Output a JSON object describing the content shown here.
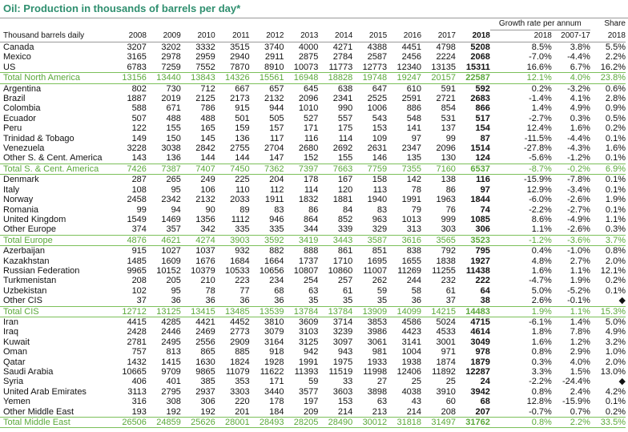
{
  "title": "Oil: Production in thousands of barrels per day*",
  "header": {
    "label": "Thousand barrels daily",
    "years": [
      "2008",
      "2009",
      "2010",
      "2011",
      "2012",
      "2013",
      "2014",
      "2015",
      "2016",
      "2017",
      "2018"
    ],
    "growth": "Growth rate per annum",
    "growth_columns": [
      "2018",
      "2007-17"
    ],
    "share": [
      "Share",
      "2018"
    ]
  },
  "groups": [
    {
      "rows": [
        [
          "Canada",
          "3207",
          "3202",
          "3332",
          "3515",
          "3740",
          "4000",
          "4271",
          "4388",
          "4451",
          "4798",
          "5208",
          "8.5%",
          "3.8%",
          "5.5%"
        ],
        [
          "Mexico",
          "3165",
          "2978",
          "2959",
          "2940",
          "2911",
          "2875",
          "2784",
          "2587",
          "2456",
          "2224",
          "2068",
          "-7.0%",
          "-4.4%",
          "2.2%"
        ],
        [
          "US",
          "6783",
          "7259",
          "7552",
          "7870",
          "8910",
          "10073",
          "11773",
          "12773",
          "12340",
          "13135",
          "15311",
          "16.6%",
          "6.7%",
          "16.2%"
        ]
      ],
      "total": [
        "Total North America",
        "13156",
        "13440",
        "13843",
        "14326",
        "15561",
        "16948",
        "18828",
        "19748",
        "19247",
        "20157",
        "22587",
        "12.1%",
        "4.0%",
        "23.8%"
      ]
    },
    {
      "rows": [
        [
          "Argentina",
          "802",
          "730",
          "712",
          "667",
          "657",
          "645",
          "638",
          "647",
          "610",
          "591",
          "592",
          "0.2%",
          "-3.2%",
          "0.6%"
        ],
        [
          "Brazil",
          "1887",
          "2019",
          "2125",
          "2173",
          "2132",
          "2096",
          "2341",
          "2525",
          "2591",
          "2721",
          "2683",
          "-1.4%",
          "4.1%",
          "2.8%"
        ],
        [
          "Colombia",
          "588",
          "671",
          "786",
          "915",
          "944",
          "1010",
          "990",
          "1006",
          "886",
          "854",
          "866",
          "1.4%",
          "4.9%",
          "0.9%"
        ],
        [
          "Ecuador",
          "507",
          "488",
          "488",
          "501",
          "505",
          "527",
          "557",
          "543",
          "548",
          "531",
          "517",
          "-2.7%",
          "0.3%",
          "0.5%"
        ],
        [
          "Peru",
          "122",
          "155",
          "165",
          "159",
          "157",
          "171",
          "175",
          "153",
          "141",
          "137",
          "154",
          "12.4%",
          "1.6%",
          "0.2%"
        ],
        [
          "Trinidad & Tobago",
          "149",
          "150",
          "145",
          "136",
          "117",
          "116",
          "114",
          "109",
          "97",
          "99",
          "87",
          "-11.5%",
          "-4.4%",
          "0.1%"
        ],
        [
          "Venezuela",
          "3228",
          "3038",
          "2842",
          "2755",
          "2704",
          "2680",
          "2692",
          "2631",
          "2347",
          "2096",
          "1514",
          "-27.8%",
          "-4.3%",
          "1.6%"
        ],
        [
          "Other S. & Cent. America",
          "143",
          "136",
          "144",
          "144",
          "147",
          "152",
          "155",
          "146",
          "135",
          "130",
          "124",
          "-5.6%",
          "-1.2%",
          "0.1%"
        ]
      ],
      "total": [
        "Total S. & Cent. America",
        "7426",
        "7387",
        "7407",
        "7450",
        "7362",
        "7397",
        "7663",
        "7759",
        "7355",
        "7160",
        "6537",
        "-8.7%",
        "-0.2%",
        "6.9%"
      ]
    },
    {
      "rows": [
        [
          "Denmark",
          "287",
          "265",
          "249",
          "225",
          "204",
          "178",
          "167",
          "158",
          "142",
          "138",
          "116",
          "-15.9%",
          "-7.8%",
          "0.1%"
        ],
        [
          "Italy",
          "108",
          "95",
          "106",
          "110",
          "112",
          "114",
          "120",
          "113",
          "78",
          "86",
          "97",
          "12.9%",
          "-3.4%",
          "0.1%"
        ],
        [
          "Norway",
          "2458",
          "2342",
          "2132",
          "2033",
          "1911",
          "1832",
          "1881",
          "1940",
          "1991",
          "1963",
          "1844",
          "-6.0%",
          "-2.6%",
          "1.9%"
        ],
        [
          "Romania",
          "99",
          "94",
          "90",
          "89",
          "83",
          "86",
          "84",
          "83",
          "79",
          "76",
          "74",
          "-2.2%",
          "-2.7%",
          "0.1%"
        ],
        [
          "United Kingdom",
          "1549",
          "1469",
          "1356",
          "1112",
          "946",
          "864",
          "852",
          "963",
          "1013",
          "999",
          "1085",
          "8.6%",
          "-4.9%",
          "1.1%"
        ],
        [
          "Other Europe",
          "374",
          "357",
          "342",
          "335",
          "335",
          "344",
          "339",
          "329",
          "313",
          "303",
          "306",
          "1.1%",
          "-2.6%",
          "0.3%"
        ]
      ],
      "total": [
        "Total Europe",
        "4876",
        "4621",
        "4274",
        "3903",
        "3592",
        "3419",
        "3443",
        "3587",
        "3616",
        "3565",
        "3523",
        "-1.2%",
        "-3.6%",
        "3.7%"
      ]
    },
    {
      "rows": [
        [
          "Azerbaijan",
          "915",
          "1027",
          "1037",
          "932",
          "882",
          "888",
          "861",
          "851",
          "838",
          "792",
          "795",
          "0.4%",
          "-1.0%",
          "0.8%"
        ],
        [
          "Kazakhstan",
          "1485",
          "1609",
          "1676",
          "1684",
          "1664",
          "1737",
          "1710",
          "1695",
          "1655",
          "1838",
          "1927",
          "4.8%",
          "2.7%",
          "2.0%"
        ],
        [
          "Russian Federation",
          "9965",
          "10152",
          "10379",
          "10533",
          "10656",
          "10807",
          "10860",
          "11007",
          "11269",
          "11255",
          "11438",
          "1.6%",
          "1.1%",
          "12.1%"
        ],
        [
          "Turkmenistan",
          "208",
          "205",
          "210",
          "223",
          "234",
          "254",
          "257",
          "262",
          "244",
          "232",
          "222",
          "-4.7%",
          "1.9%",
          "0.2%"
        ],
        [
          "Uzbekistan",
          "102",
          "95",
          "78",
          "77",
          "68",
          "63",
          "61",
          "59",
          "58",
          "61",
          "64",
          "5.0%",
          "-5.2%",
          "0.1%"
        ],
        [
          "Other CIS",
          "37",
          "36",
          "36",
          "36",
          "36",
          "35",
          "35",
          "35",
          "36",
          "37",
          "38",
          "2.6%",
          "-0.1%",
          "◆"
        ]
      ],
      "total": [
        "Total CIS",
        "12712",
        "13125",
        "13415",
        "13485",
        "13539",
        "13784",
        "13784",
        "13909",
        "14099",
        "14215",
        "14483",
        "1.9%",
        "1.1%",
        "15.3%"
      ]
    },
    {
      "rows": [
        [
          "Iran",
          "4415",
          "4285",
          "4421",
          "4452",
          "3810",
          "3609",
          "3714",
          "3853",
          "4586",
          "5024",
          "4715",
          "-6.1%",
          "1.4%",
          "5.0%"
        ],
        [
          "Iraq",
          "2428",
          "2446",
          "2469",
          "2773",
          "3079",
          "3103",
          "3239",
          "3986",
          "4423",
          "4533",
          "4614",
          "1.8%",
          "7.8%",
          "4.9%"
        ],
        [
          "Kuwait",
          "2781",
          "2495",
          "2556",
          "2909",
          "3164",
          "3125",
          "3097",
          "3061",
          "3141",
          "3001",
          "3049",
          "1.6%",
          "1.2%",
          "3.2%"
        ],
        [
          "Oman",
          "757",
          "813",
          "865",
          "885",
          "918",
          "942",
          "943",
          "981",
          "1004",
          "971",
          "978",
          "0.8%",
          "2.9%",
          "1.0%"
        ],
        [
          "Qatar",
          "1432",
          "1415",
          "1630",
          "1824",
          "1928",
          "1991",
          "1975",
          "1933",
          "1938",
          "1874",
          "1879",
          "0.3%",
          "4.0%",
          "2.0%"
        ],
        [
          "Saudi Arabia",
          "10665",
          "9709",
          "9865",
          "11079",
          "11622",
          "11393",
          "11519",
          "11998",
          "12406",
          "11892",
          "12287",
          "3.3%",
          "1.5%",
          "13.0%"
        ],
        [
          "Syria",
          "406",
          "401",
          "385",
          "353",
          "171",
          "59",
          "33",
          "27",
          "25",
          "25",
          "24",
          "-2.2%",
          "-24.4%",
          "◆"
        ],
        [
          "United Arab Emirates",
          "3113",
          "2795",
          "2937",
          "3303",
          "3440",
          "3577",
          "3603",
          "3898",
          "4038",
          "3910",
          "3942",
          "0.8%",
          "2.4%",
          "4.2%"
        ],
        [
          "Yemen",
          "316",
          "308",
          "306",
          "220",
          "178",
          "197",
          "153",
          "63",
          "43",
          "60",
          "68",
          "12.8%",
          "-15.9%",
          "0.1%"
        ],
        [
          "Other Middle East",
          "193",
          "192",
          "192",
          "201",
          "184",
          "209",
          "214",
          "213",
          "214",
          "208",
          "207",
          "-0.7%",
          "0.7%",
          "0.2%"
        ]
      ],
      "total": [
        "Total Middle East",
        "26506",
        "24859",
        "25626",
        "28001",
        "28493",
        "28205",
        "28490",
        "30012",
        "31818",
        "31497",
        "31762",
        "0.8%",
        "2.2%",
        "33.5%"
      ]
    }
  ]
}
